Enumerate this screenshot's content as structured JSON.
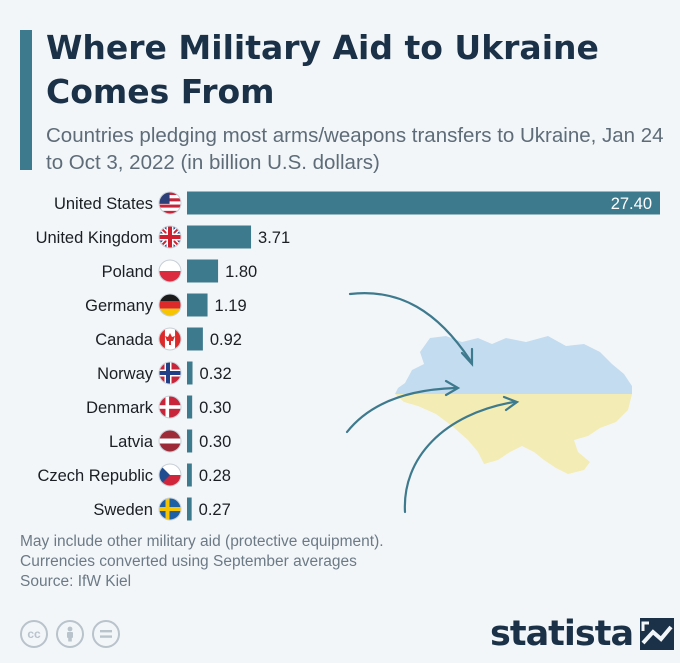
{
  "header": {
    "title": "Where Military Aid to Ukraine Comes From",
    "subtitle": "Countries pledging most arms/weapons transfers to Ukraine, Jan 24 to Oct 3, 2022 (in billion U.S. dollars)"
  },
  "colors": {
    "bar": "#3e7a8d",
    "title": "#1b3147",
    "map_blue": "#c4dcf0",
    "map_yellow": "#f3ecb4"
  },
  "chart_data": {
    "type": "bar",
    "orientation": "horizontal",
    "categories": [
      "United States",
      "United Kingdom",
      "Poland",
      "Germany",
      "Canada",
      "Norway",
      "Denmark",
      "Latvia",
      "Czech Republic",
      "Sweden"
    ],
    "values": [
      27.4,
      3.71,
      1.8,
      1.19,
      0.92,
      0.32,
      0.3,
      0.3,
      0.28,
      0.27
    ],
    "value_labels": [
      "27.40",
      "3.71",
      "1.80",
      "1.19",
      "0.92",
      "0.32",
      "0.30",
      "0.30",
      "0.28",
      "0.27"
    ],
    "flags": [
      "us-flag-icon",
      "uk-flag-icon",
      "poland-flag-icon",
      "germany-flag-icon",
      "canada-flag-icon",
      "norway-flag-icon",
      "denmark-flag-icon",
      "latvia-flag-icon",
      "czech-flag-icon",
      "sweden-flag-icon"
    ],
    "xlim": [
      0,
      27.4
    ],
    "grid": false,
    "legend": "none"
  },
  "notes": {
    "line1": "May include other military aid (protective equipment).",
    "line2": "Currencies converted using September averages",
    "source": "Source: IfW Kiel"
  },
  "footer": {
    "logo_text": "statista",
    "license_icons": [
      "cc-icon",
      "attribution-icon",
      "no-derivatives-icon"
    ]
  }
}
